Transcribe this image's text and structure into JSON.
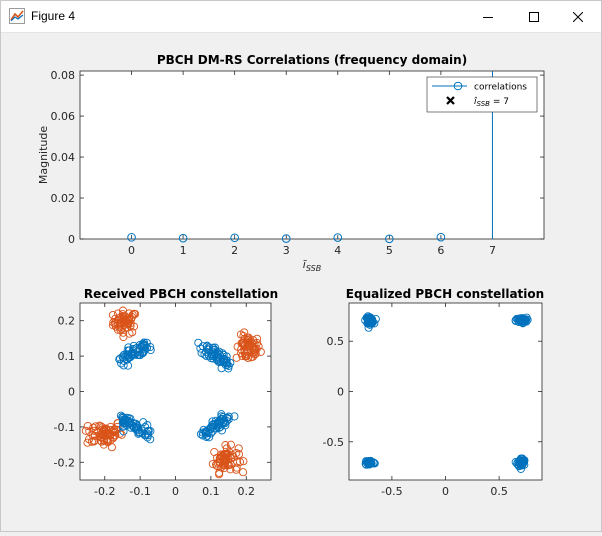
{
  "window": {
    "title": "Figure 4",
    "icons": {
      "app": "matlab-figure-icon",
      "minimize": "minimize-icon",
      "maximize": "maximize-icon",
      "close": "close-icon"
    }
  },
  "chart_data": [
    {
      "type": "stem",
      "title": "PBCH DM-RS Correlations (frequency domain)",
      "xlabel": "i_SSB",
      "ylabel": "Magnitude",
      "xlim": [
        -1,
        8
      ],
      "ylim": [
        0,
        0.082
      ],
      "xticks": [
        0,
        1,
        2,
        3,
        4,
        5,
        6,
        7
      ],
      "yticks": [
        0,
        0.02,
        0.04,
        0.06,
        0.08
      ],
      "ytick_labels": [
        "0",
        "0.02",
        "0.04",
        "0.06",
        "0.08"
      ],
      "grid": false,
      "legend_position": "top-right",
      "series": [
        {
          "name": "correlations",
          "x": [
            0,
            1,
            2,
            3,
            4,
            5,
            6,
            7
          ],
          "values": [
            0.0008,
            0.0004,
            0.0006,
            0.0002,
            0.0007,
            0.0001,
            0.0009,
            0.082
          ],
          "color": "#0072bd"
        }
      ],
      "marker_label": "i_SSB = 7",
      "marker_x": 7
    },
    {
      "type": "scatter",
      "title": "Received PBCH constellation",
      "xlim": [
        -0.27,
        0.27
      ],
      "ylim": [
        -0.25,
        0.25
      ],
      "xticks": [
        -0.2,
        -0.1,
        0,
        0.1,
        0.2
      ],
      "xtick_labels": [
        "-0.2",
        "-0.1",
        "0",
        "0.1",
        "0.2"
      ],
      "yticks": [
        -0.2,
        -0.1,
        0,
        0.1,
        0.2
      ],
      "ytick_labels": [
        "-0.2",
        "-0.1",
        "0",
        "0.1",
        "0.2"
      ],
      "grid": false,
      "clusters": [
        {
          "color": "#d95319",
          "cx": -0.142,
          "cy": 0.196,
          "sx": 0.017,
          "sy": 0.016,
          "n": 55,
          "spread": "blob"
        },
        {
          "color": "#d95319",
          "cx": 0.205,
          "cy": 0.122,
          "sx": 0.017,
          "sy": 0.018,
          "n": 55,
          "spread": "blob"
        },
        {
          "color": "#d95319",
          "cx": -0.205,
          "cy": -0.118,
          "sx": 0.028,
          "sy": 0.019,
          "n": 70,
          "spread": "blob"
        },
        {
          "color": "#d95319",
          "cx": 0.142,
          "cy": -0.192,
          "sx": 0.018,
          "sy": 0.018,
          "n": 60,
          "spread": "blob"
        },
        {
          "color": "#0072bd",
          "x0": -0.155,
          "y0": 0.085,
          "x1": -0.078,
          "y1": 0.132,
          "w": 0.008,
          "n": 55,
          "spread": "line"
        },
        {
          "color": "#0072bd",
          "x0": 0.078,
          "y0": 0.13,
          "x1": 0.15,
          "y1": 0.078,
          "w": 0.008,
          "n": 55,
          "spread": "line"
        },
        {
          "color": "#0072bd",
          "x0": -0.155,
          "y0": -0.075,
          "x1": -0.08,
          "y1": -0.125,
          "w": 0.008,
          "n": 55,
          "spread": "line"
        },
        {
          "color": "#0072bd",
          "x0": 0.075,
          "y0": -0.125,
          "x1": 0.152,
          "y1": -0.072,
          "w": 0.008,
          "n": 55,
          "spread": "line"
        }
      ]
    },
    {
      "type": "scatter",
      "title": "Equalized PBCH constellation",
      "xlim": [
        -0.9,
        0.9
      ],
      "ylim": [
        -0.88,
        0.88
      ],
      "xticks": [
        -0.5,
        0,
        0.5
      ],
      "xtick_labels": [
        "-0.5",
        "0",
        "0.5"
      ],
      "yticks": [
        -0.5,
        0,
        0.5
      ],
      "ytick_labels": [
        "-0.5",
        "0",
        "0.5"
      ],
      "grid": false,
      "clusters": [
        {
          "color": "#0072bd",
          "cx": -0.707,
          "cy": 0.707,
          "sx": 0.018,
          "sy": 0.018,
          "n": 45,
          "spread": "blob"
        },
        {
          "color": "#0072bd",
          "cx": 0.707,
          "cy": 0.707,
          "sx": 0.025,
          "sy": 0.013,
          "n": 45,
          "spread": "blob"
        },
        {
          "color": "#0072bd",
          "cx": -0.707,
          "cy": -0.707,
          "sx": 0.022,
          "sy": 0.013,
          "n": 45,
          "spread": "blob"
        },
        {
          "color": "#0072bd",
          "cx": 0.707,
          "cy": -0.707,
          "sx": 0.018,
          "sy": 0.022,
          "n": 45,
          "spread": "blob"
        }
      ]
    }
  ]
}
